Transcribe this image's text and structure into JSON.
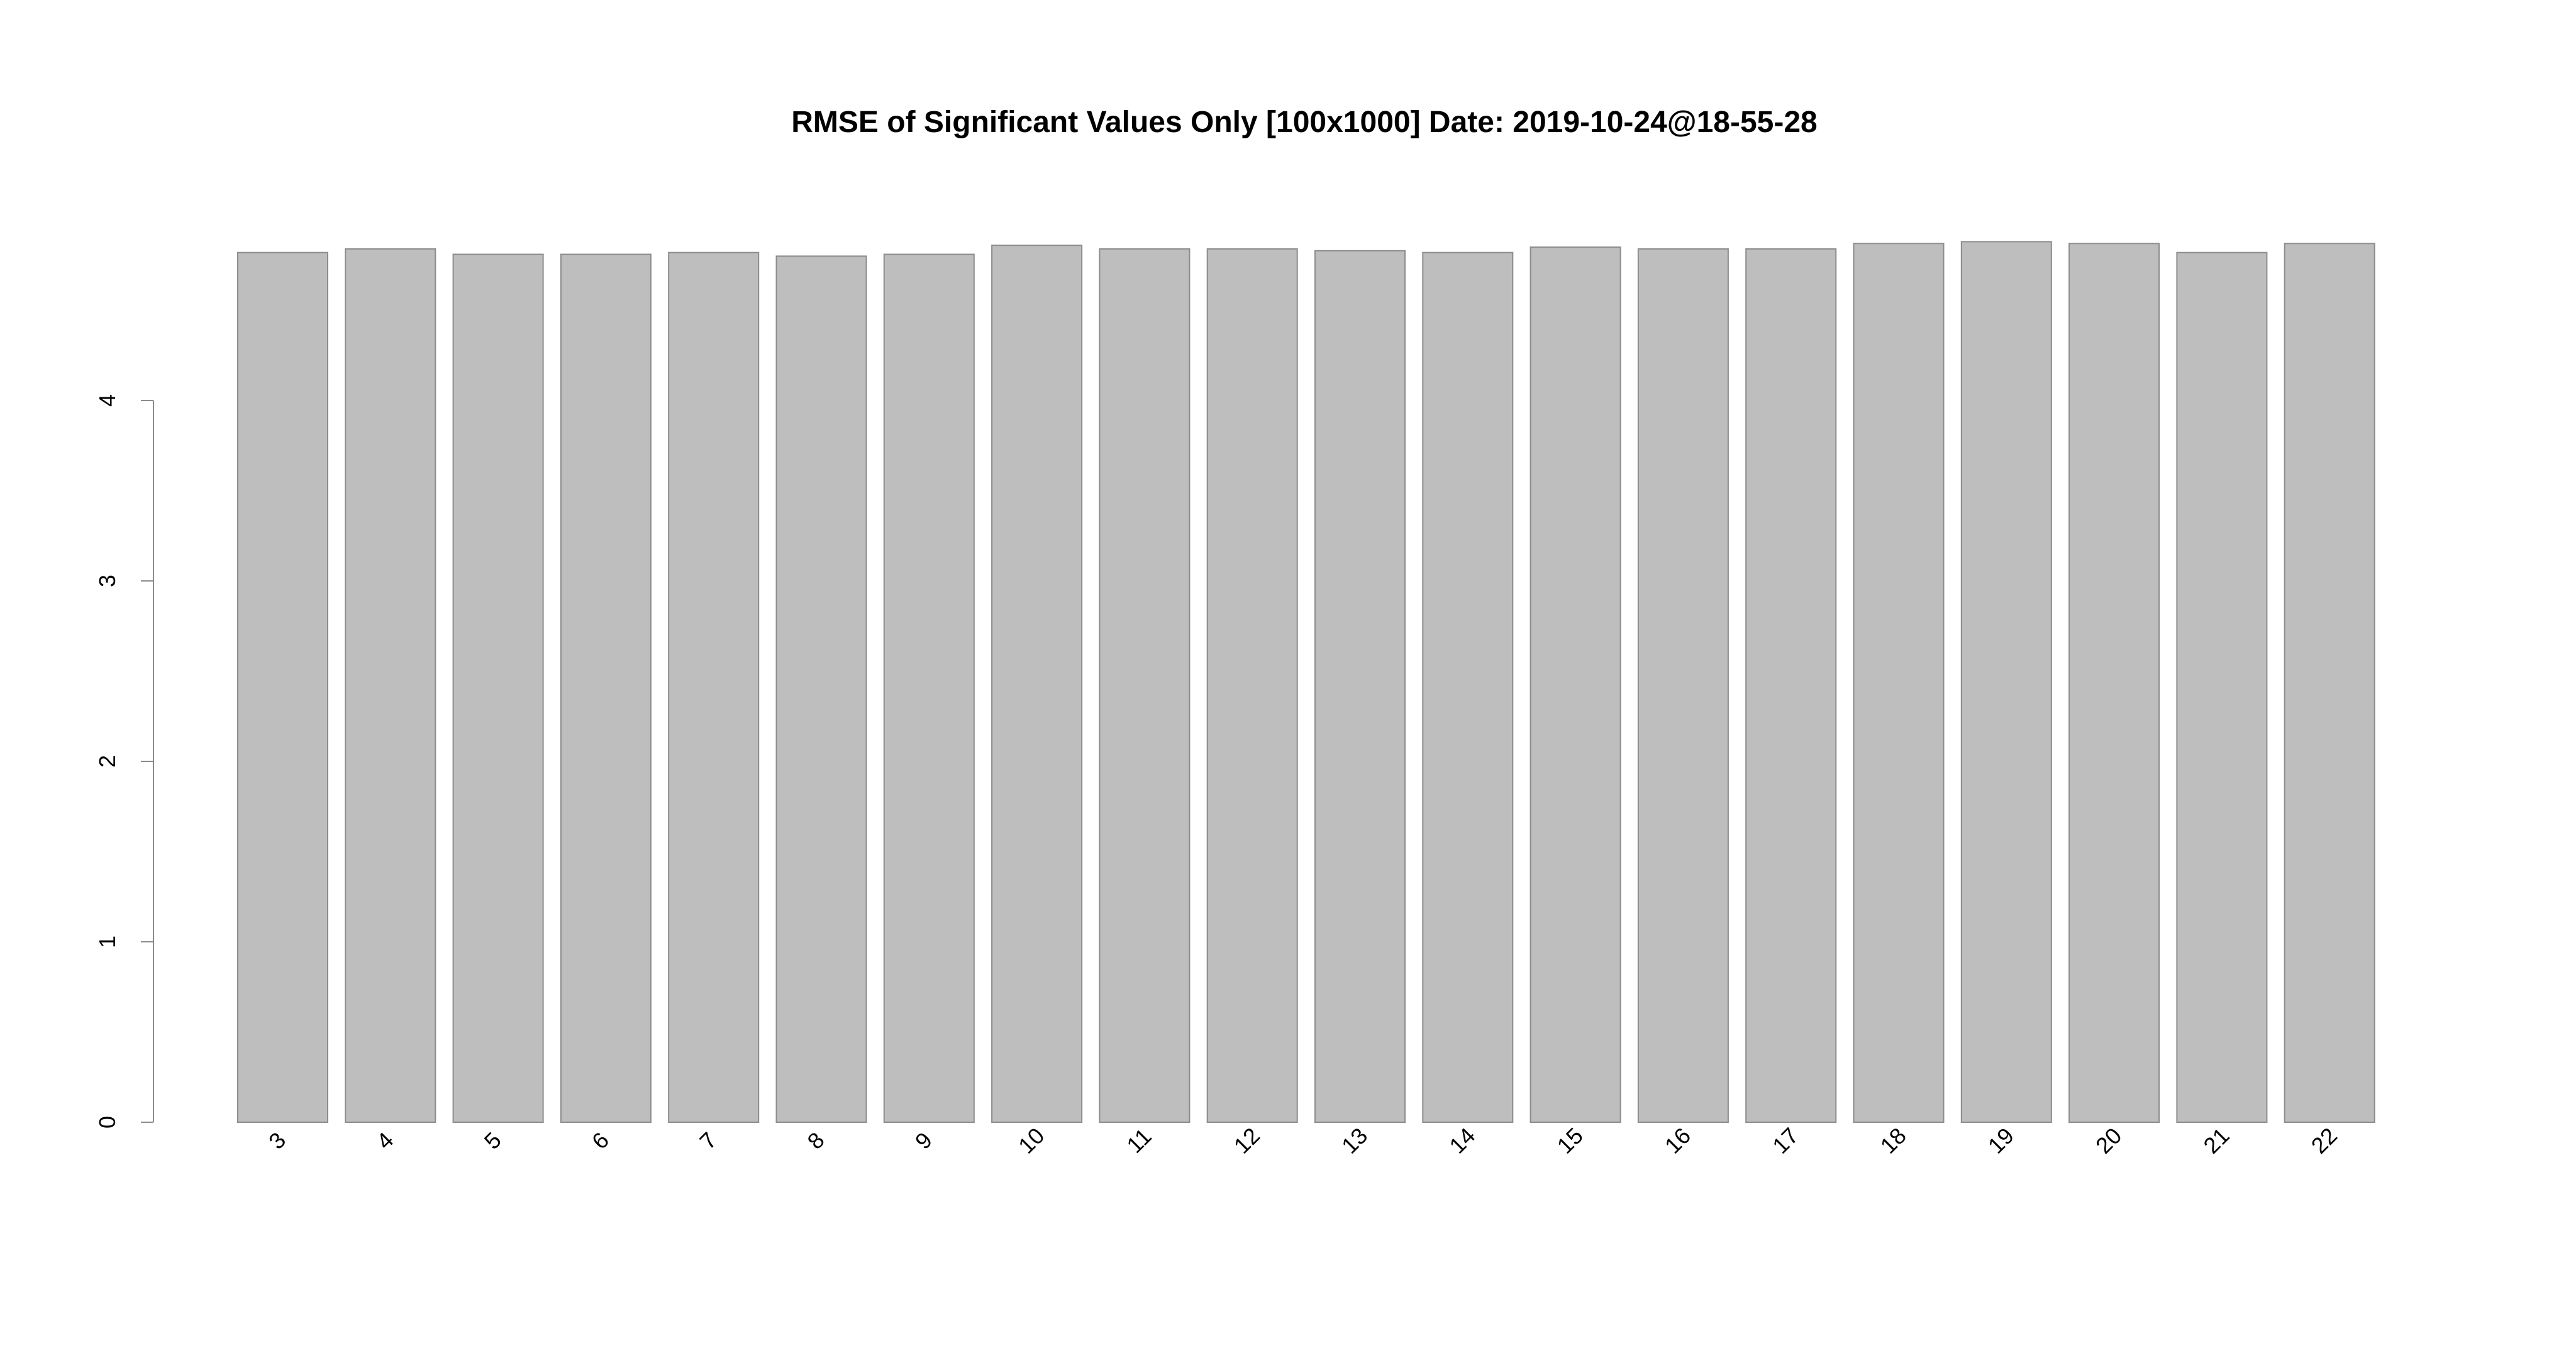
{
  "chart_data": {
    "type": "bar",
    "title": "RMSE of Significant Values Only [100x1000] Date: 2019-10-24@18-55-28",
    "xlabel": "",
    "ylabel": "",
    "categories": [
      "3",
      "4",
      "5",
      "6",
      "7",
      "8",
      "9",
      "10",
      "11",
      "12",
      "13",
      "14",
      "15",
      "16",
      "17",
      "18",
      "19",
      "20",
      "21",
      "22"
    ],
    "values": [
      4.82,
      4.84,
      4.81,
      4.81,
      4.82,
      4.8,
      4.81,
      4.86,
      4.84,
      4.84,
      4.83,
      4.82,
      4.85,
      4.84,
      4.84,
      4.87,
      4.88,
      4.87,
      4.82,
      4.87
    ],
    "ylim": [
      0,
      4
    ],
    "yticks": [
      0,
      1,
      2,
      3,
      4
    ],
    "grid": false,
    "legend": "none",
    "colors": {
      "bar_fill": "#bebebe",
      "bar_stroke": "#8c8c8c",
      "axis": "#8c8c8c",
      "text": "#000000"
    }
  }
}
